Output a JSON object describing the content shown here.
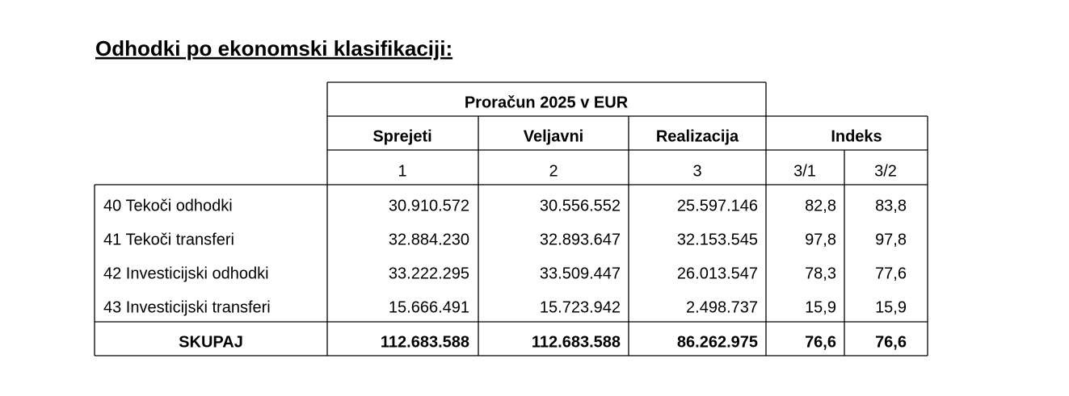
{
  "title": "Odhodki po ekonomski klasifikaciji:",
  "table": {
    "budget_label": "Proračun 2025 v EUR",
    "columns": [
      "Sprejeti",
      "Veljavni",
      "Realizacija"
    ],
    "index_label": "Indeks",
    "column_numbers": [
      "1",
      "2",
      "3",
      "3/1",
      "3/2"
    ],
    "rows": [
      [
        "40 Tekoči odhodki",
        "30.910.572",
        "30.556.552",
        "25.597.146",
        "82,8",
        "83,8"
      ],
      [
        "41 Tekoči transferi",
        "32.884.230",
        "32.893.647",
        "32.153.545",
        "97,8",
        "97,8"
      ],
      [
        "42 Investicijski odhodki",
        "33.222.295",
        "33.509.447",
        "26.013.547",
        "78,3",
        "77,6"
      ],
      [
        "43 Investicijski transferi",
        "15.666.491",
        "15.723.942",
        "2.498.737",
        "15,9",
        "15,9"
      ]
    ],
    "total": [
      "SKUPAJ",
      "112.683.588",
      "112.683.588",
      "86.262.975",
      "76,6",
      "76,6"
    ]
  }
}
